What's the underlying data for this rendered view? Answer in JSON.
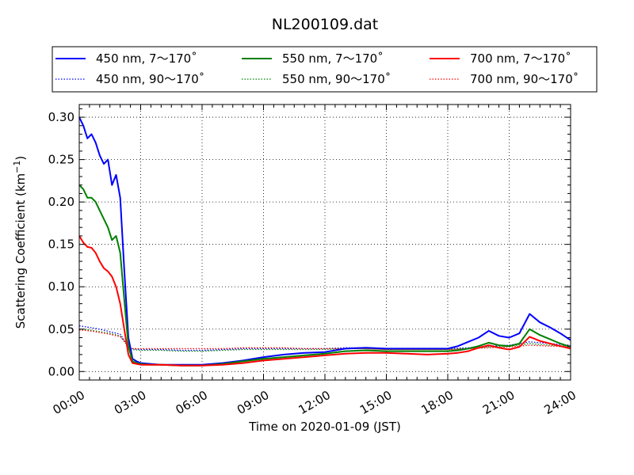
{
  "chart_data": {
    "type": "line",
    "title": "NL200109.dat",
    "xlabel": "Time on 2020-01-09 (JST)",
    "ylabel_main": "Scattering Coefficient (km",
    "ylabel_sup": "−1",
    "ylabel_end": ")",
    "xlim": [
      0,
      24
    ],
    "ylim": [
      -0.01,
      0.315
    ],
    "grid": true,
    "legend_placement": "top (above plot)",
    "x_tick_labels": [
      "00:00",
      "03:00",
      "06:00",
      "09:00",
      "12:00",
      "15:00",
      "18:00",
      "21:00",
      "24:00"
    ],
    "x_ticks": [
      0,
      3,
      6,
      9,
      12,
      15,
      18,
      21,
      24
    ],
    "y_tick_labels": [
      "0.00",
      "0.05",
      "0.10",
      "0.15",
      "0.20",
      "0.25",
      "0.30"
    ],
    "y_ticks": [
      0.0,
      0.05,
      0.1,
      0.15,
      0.2,
      0.25,
      0.3
    ],
    "x_unit": "hours since 00:00",
    "series": [
      {
        "name": "450 nm, 7～170˚",
        "color": "#0000ff",
        "dash": "solid",
        "x": [
          0,
          0.2,
          0.4,
          0.6,
          0.8,
          1.0,
          1.2,
          1.4,
          1.6,
          1.8,
          2.0,
          2.2,
          2.4,
          2.6,
          2.8,
          3.0,
          3.5,
          4.0,
          5.0,
          6.0,
          7.0,
          8.0,
          9.0,
          10.0,
          11.0,
          12.0,
          13.0,
          14.0,
          15.0,
          16.0,
          17.0,
          18.0,
          18.5,
          19.0,
          19.5,
          20.0,
          20.5,
          21.0,
          21.5,
          22.0,
          22.5,
          23.0,
          23.5,
          24.0
        ],
        "y": [
          0.3,
          0.29,
          0.275,
          0.28,
          0.27,
          0.255,
          0.245,
          0.25,
          0.22,
          0.232,
          0.205,
          0.12,
          0.04,
          0.015,
          0.012,
          0.01,
          0.009,
          0.008,
          0.008,
          0.008,
          0.01,
          0.013,
          0.017,
          0.02,
          0.022,
          0.023,
          0.027,
          0.028,
          0.027,
          0.027,
          0.027,
          0.027,
          0.03,
          0.035,
          0.04,
          0.048,
          0.042,
          0.04,
          0.045,
          0.068,
          0.058,
          0.052,
          0.045,
          0.037
        ]
      },
      {
        "name": "550 nm, 7～170˚",
        "color": "#008000",
        "dash": "solid",
        "x": [
          0,
          0.2,
          0.4,
          0.6,
          0.8,
          1.0,
          1.2,
          1.4,
          1.6,
          1.8,
          2.0,
          2.2,
          2.4,
          2.6,
          2.8,
          3.0,
          3.5,
          4.0,
          5.0,
          6.0,
          7.0,
          8.0,
          9.0,
          10.0,
          11.0,
          12.0,
          13.0,
          14.0,
          15.0,
          16.0,
          17.0,
          18.0,
          18.5,
          19.0,
          19.5,
          20.0,
          20.5,
          21.0,
          21.5,
          22.0,
          22.5,
          23.0,
          23.5,
          24.0
        ],
        "y": [
          0.22,
          0.215,
          0.205,
          0.205,
          0.2,
          0.19,
          0.18,
          0.17,
          0.155,
          0.16,
          0.14,
          0.085,
          0.03,
          0.012,
          0.01,
          0.009,
          0.008,
          0.008,
          0.007,
          0.007,
          0.009,
          0.012,
          0.015,
          0.017,
          0.019,
          0.021,
          0.024,
          0.025,
          0.024,
          0.024,
          0.024,
          0.024,
          0.025,
          0.027,
          0.03,
          0.034,
          0.031,
          0.03,
          0.033,
          0.05,
          0.043,
          0.038,
          0.033,
          0.029
        ]
      },
      {
        "name": "700 nm, 7～170˚",
        "color": "#ff0000",
        "dash": "solid",
        "x": [
          0,
          0.2,
          0.4,
          0.6,
          0.8,
          1.0,
          1.2,
          1.4,
          1.6,
          1.8,
          2.0,
          2.2,
          2.4,
          2.6,
          2.8,
          3.0,
          3.5,
          4.0,
          5.0,
          6.0,
          7.0,
          8.0,
          9.0,
          10.0,
          11.0,
          12.0,
          13.0,
          14.0,
          15.0,
          16.0,
          17.0,
          18.0,
          18.5,
          19.0,
          19.5,
          20.0,
          20.5,
          21.0,
          21.5,
          22.0,
          22.5,
          23.0,
          23.5,
          24.0
        ],
        "y": [
          0.16,
          0.152,
          0.147,
          0.146,
          0.14,
          0.13,
          0.122,
          0.118,
          0.112,
          0.1,
          0.08,
          0.05,
          0.02,
          0.01,
          0.009,
          0.008,
          0.008,
          0.008,
          0.007,
          0.007,
          0.008,
          0.01,
          0.013,
          0.015,
          0.017,
          0.019,
          0.021,
          0.022,
          0.022,
          0.021,
          0.02,
          0.021,
          0.022,
          0.024,
          0.028,
          0.031,
          0.028,
          0.026,
          0.029,
          0.041,
          0.036,
          0.033,
          0.03,
          0.027
        ]
      },
      {
        "name": "450 nm, 90～170˚",
        "color": "#0000ff",
        "dash": "dotted",
        "x": [
          0,
          0.5,
          1.0,
          1.5,
          2.0,
          2.4,
          2.6,
          3.0,
          4.0,
          5.0,
          6.0,
          7.0,
          8.0,
          9.0,
          10.0,
          11.0,
          12.0,
          13.0,
          14.0,
          15.0,
          16.0,
          17.0,
          18.0,
          19.0,
          20.0,
          21.0,
          22.0,
          23.0,
          24.0
        ],
        "y": [
          0.054,
          0.052,
          0.05,
          0.047,
          0.044,
          0.03,
          0.027,
          0.026,
          0.026,
          0.025,
          0.025,
          0.026,
          0.027,
          0.027,
          0.027,
          0.027,
          0.027,
          0.028,
          0.028,
          0.027,
          0.027,
          0.027,
          0.027,
          0.028,
          0.03,
          0.031,
          0.035,
          0.033,
          0.031
        ]
      },
      {
        "name": "550 nm, 90～170˚",
        "color": "#008000",
        "dash": "dotted",
        "x": [
          0,
          0.5,
          1.0,
          1.5,
          2.0,
          2.4,
          2.6,
          3.0,
          4.0,
          5.0,
          6.0,
          7.0,
          8.0,
          9.0,
          10.0,
          11.0,
          12.0,
          13.0,
          14.0,
          15.0,
          16.0,
          17.0,
          18.0,
          19.0,
          20.0,
          21.0,
          22.0,
          23.0,
          24.0
        ],
        "y": [
          0.05,
          0.049,
          0.047,
          0.045,
          0.042,
          0.029,
          0.026,
          0.025,
          0.025,
          0.024,
          0.024,
          0.025,
          0.026,
          0.026,
          0.026,
          0.026,
          0.026,
          0.027,
          0.027,
          0.026,
          0.026,
          0.026,
          0.026,
          0.027,
          0.029,
          0.03,
          0.033,
          0.031,
          0.03
        ]
      },
      {
        "name": "700 nm, 90～170˚",
        "color": "#ff0000",
        "dash": "dotted",
        "x": [
          0,
          0.5,
          1.0,
          1.5,
          2.0,
          2.4,
          2.6,
          3.0,
          4.0,
          5.0,
          6.0,
          7.0,
          8.0,
          9.0,
          10.0,
          11.0,
          12.0,
          13.0,
          14.0,
          15.0,
          16.0,
          17.0,
          18.0,
          19.0,
          20.0,
          21.0,
          22.0,
          23.0,
          24.0
        ],
        "y": [
          0.049,
          0.048,
          0.046,
          0.044,
          0.041,
          0.03,
          0.027,
          0.027,
          0.027,
          0.027,
          0.027,
          0.027,
          0.028,
          0.028,
          0.028,
          0.027,
          0.027,
          0.027,
          0.027,
          0.026,
          0.026,
          0.026,
          0.026,
          0.027,
          0.028,
          0.029,
          0.031,
          0.03,
          0.029
        ]
      }
    ]
  }
}
